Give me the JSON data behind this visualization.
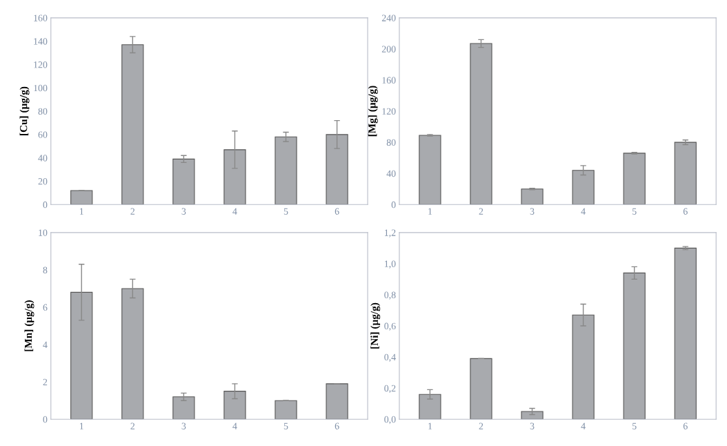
{
  "chart_data": [
    {
      "type": "bar",
      "ylabel": "[Cu] (µg/g)",
      "categories": [
        "1",
        "2",
        "3",
        "4",
        "5",
        "6"
      ],
      "values": [
        12,
        137,
        39,
        47,
        58,
        60
      ],
      "errors": [
        null,
        7,
        3,
        16,
        4,
        12
      ],
      "color": "#a8aaae",
      "ylim": [
        0,
        160
      ],
      "yticks": [
        0,
        20,
        40,
        60,
        80,
        100,
        120,
        140,
        160
      ],
      "grid": false
    },
    {
      "type": "bar",
      "ylabel": "[Mg] (µg/g)",
      "categories": [
        "1",
        "2",
        "3",
        "4",
        "5",
        "6"
      ],
      "values": [
        89,
        207,
        20,
        44,
        66,
        80
      ],
      "errors": [
        1,
        5,
        1,
        6,
        1,
        3
      ],
      "color": "#a8aaae",
      "ylim": [
        0,
        240
      ],
      "yticks": [
        0,
        40,
        80,
        120,
        160,
        200,
        240
      ],
      "grid": false
    },
    {
      "type": "bar",
      "ylabel": "[Mn] (µg/g)",
      "categories": [
        "1",
        "2",
        "3",
        "4",
        "5",
        "6"
      ],
      "values": [
        6.8,
        7.0,
        1.2,
        1.5,
        1.0,
        1.9
      ],
      "errors": [
        1.5,
        0.5,
        0.2,
        0.4,
        null,
        null
      ],
      "color": "#a8aaae",
      "ylim": [
        0,
        10
      ],
      "yticks": [
        0,
        2,
        4,
        6,
        8,
        10
      ],
      "grid": false
    },
    {
      "type": "bar",
      "ylabel": "[Ni] (µg/g)",
      "categories": [
        "1",
        "2",
        "3",
        "4",
        "5",
        "6"
      ],
      "values": [
        0.16,
        0.39,
        0.05,
        0.67,
        0.94,
        1.1
      ],
      "errors": [
        0.03,
        null,
        0.02,
        0.07,
        0.04,
        0.01
      ],
      "color": "#a8aaae",
      "ylim": [
        0,
        1.2
      ],
      "yticks": [
        {
          "value": 0,
          "label": "0,0"
        },
        {
          "value": 0.2,
          "label": "0,2"
        },
        {
          "value": 0.4,
          "label": "0,4"
        },
        {
          "value": 0.6,
          "label": "0,6"
        },
        {
          "value": 0.8,
          "label": "0,8"
        },
        {
          "value": 1.0,
          "label": "1,0"
        },
        {
          "value": 1.2,
          "label": "1,2"
        }
      ],
      "grid": false
    }
  ]
}
